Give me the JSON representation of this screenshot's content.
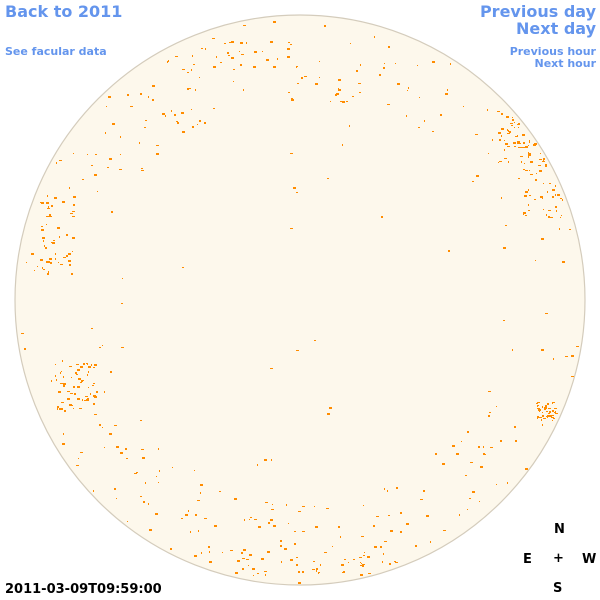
{
  "nav": {
    "back_year": "Back to 2011",
    "facular_data": "See facular data",
    "previous_day": "Previous day",
    "next_day": "Next day",
    "previous_hour": "Previous hour",
    "next_hour": "Next hour"
  },
  "timestamp": "2011-03-09T09:59:00",
  "compass": {
    "north": "N",
    "south": "S",
    "east": "E",
    "west": "W",
    "center": "+"
  },
  "colors": {
    "link": "#6495ed",
    "disk_fill": "#fdf8ec",
    "disk_edge": "#d4ccbc",
    "facula": "#ff8c00"
  }
}
